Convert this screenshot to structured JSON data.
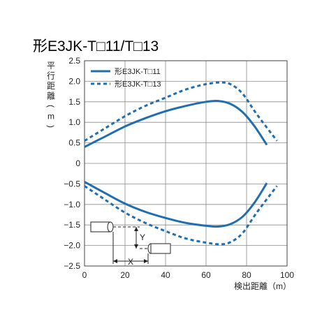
{
  "chart_data": {
    "type": "line",
    "title": "形E3JK-T□11/T□13",
    "ylabel_chars": [
      "平",
      "行",
      "距",
      "離",
      "(",
      "m",
      ")"
    ],
    "xlabel": "検出距離（m）",
    "xlim": [
      0,
      100
    ],
    "ylim": [
      -2.5,
      2.5
    ],
    "x_ticks": [
      0,
      20,
      40,
      60,
      80,
      100
    ],
    "y_ticks": [
      2.5,
      2.0,
      1.5,
      1.0,
      0.5,
      0,
      -0.5,
      -1.0,
      -1.5,
      -2.0,
      -2.5
    ],
    "y_tick_labels": [
      "2.5",
      "2.0",
      "1.5",
      "1.0",
      "0.5",
      "0",
      "−0.5",
      "−1.0",
      "−1.5",
      "−2.0",
      "−2.5"
    ],
    "grid": true,
    "legend_position": "top-left",
    "series": [
      {
        "name": "形E3JK-T□11",
        "style": "solid",
        "color": "#1f6fb0",
        "upper": [
          [
            0,
            0.4
          ],
          [
            10,
            0.65
          ],
          [
            20,
            0.9
          ],
          [
            30,
            1.1
          ],
          [
            40,
            1.27
          ],
          [
            50,
            1.4
          ],
          [
            60,
            1.5
          ],
          [
            66,
            1.52
          ],
          [
            72,
            1.45
          ],
          [
            78,
            1.25
          ],
          [
            84,
            0.9
          ],
          [
            90,
            0.45
          ]
        ],
        "lower": [
          [
            0,
            -0.45
          ],
          [
            10,
            -0.72
          ],
          [
            20,
            -0.98
          ],
          [
            30,
            -1.18
          ],
          [
            40,
            -1.33
          ],
          [
            50,
            -1.45
          ],
          [
            60,
            -1.52
          ],
          [
            66,
            -1.54
          ],
          [
            72,
            -1.48
          ],
          [
            78,
            -1.3
          ],
          [
            84,
            -0.95
          ],
          [
            90,
            -0.48
          ]
        ]
      },
      {
        "name": "形E3JK-T□13",
        "style": "dashed",
        "color": "#1f6fb0",
        "upper": [
          [
            0,
            0.55
          ],
          [
            10,
            0.85
          ],
          [
            20,
            1.15
          ],
          [
            30,
            1.4
          ],
          [
            40,
            1.6
          ],
          [
            50,
            1.8
          ],
          [
            60,
            1.93
          ],
          [
            67,
            1.97
          ],
          [
            72,
            1.93
          ],
          [
            78,
            1.7
          ],
          [
            85,
            1.2
          ],
          [
            95,
            0.55
          ]
        ],
        "lower": [
          [
            0,
            -0.55
          ],
          [
            10,
            -0.88
          ],
          [
            20,
            -1.2
          ],
          [
            30,
            -1.45
          ],
          [
            40,
            -1.65
          ],
          [
            50,
            -1.83
          ],
          [
            60,
            -1.93
          ],
          [
            67,
            -1.97
          ],
          [
            72,
            -1.92
          ],
          [
            78,
            -1.7
          ],
          [
            85,
            -1.2
          ],
          [
            95,
            -0.55
          ]
        ]
      }
    ],
    "inset_labels": {
      "x": "X",
      "y": "Y"
    }
  }
}
